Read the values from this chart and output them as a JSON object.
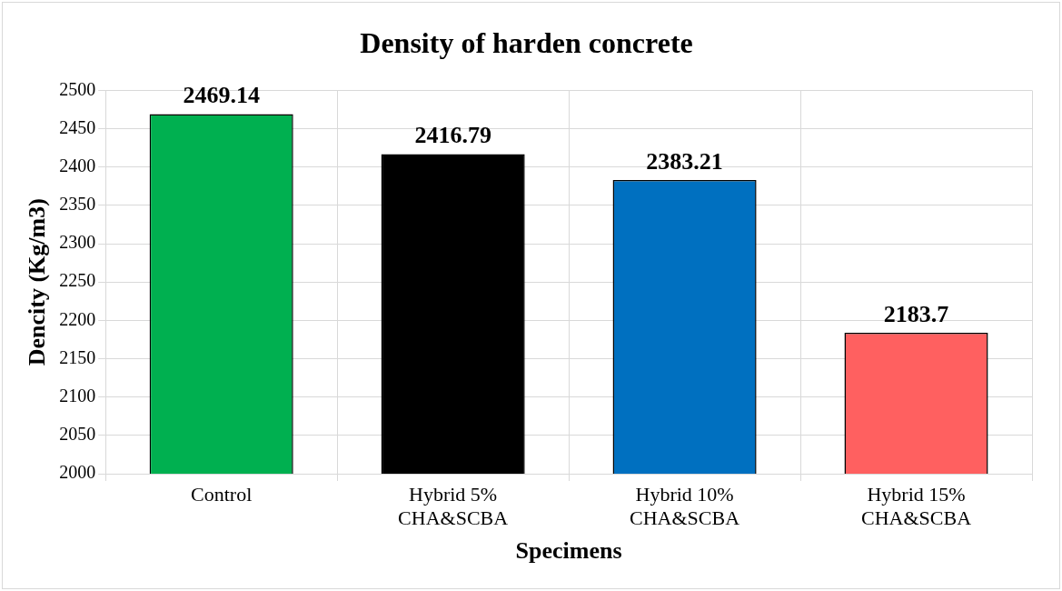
{
  "chart_data": {
    "type": "bar",
    "title": "Density of harden concrete",
    "xlabel": "Specimens",
    "ylabel": "Dencity (Kg/m3)",
    "categories": [
      "Control",
      "Hybrid 5% CHA&SCBA",
      "Hybrid 10% CHA&SCBA",
      "Hybrid 15% CHA&SCBA"
    ],
    "values": [
      2469.14,
      2416.79,
      2383.21,
      2183.7
    ],
    "colors": [
      "#00b050",
      "#000000",
      "#0070c0",
      "#ff6060"
    ],
    "ylim": [
      2000,
      2500
    ],
    "yticks": [
      2000,
      2050,
      2100,
      2150,
      2200,
      2250,
      2300,
      2350,
      2400,
      2450,
      2500
    ],
    "grid": true,
    "data_labels": true
  }
}
